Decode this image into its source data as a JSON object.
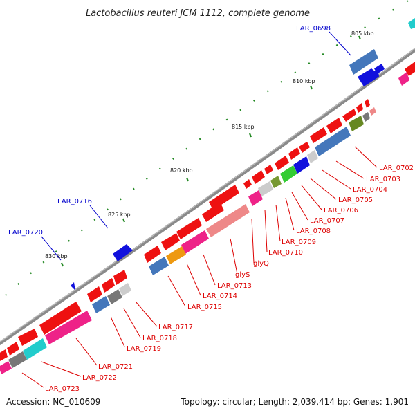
{
  "title": "Lactobacillus reuteri JCM 1112, complete genome",
  "footer": {
    "accession": "Accession: NC_010609",
    "topology": "Topology: circular; Length: 2,039,414 bp; Genes: 1,901"
  },
  "scale_labels": [
    "805 kbp",
    "810 kbp",
    "815 kbp",
    "820 kbp",
    "825 kbp",
    "830 kbp"
  ],
  "gene_labels_blue": [
    "LAR_0698",
    "LAR_0716",
    "LAR_0720"
  ],
  "gene_labels_red": [
    "LAR_0702",
    "LAR_0703",
    "LAR_0704",
    "LAR_0705",
    "LAR_0706",
    "LAR_0707",
    "LAR_0708",
    "LAR_0709",
    "LAR_0710",
    "glyQ",
    "glyS",
    "LAR_0713",
    "LAR_0714",
    "LAR_0715",
    "LAR_0717",
    "LAR_0718",
    "LAR_0719",
    "LAR_0721",
    "LAR_0722",
    "LAR_0723"
  ],
  "colors": {
    "backbone": "#808080",
    "forward_gene": "#ee1111",
    "reverse_gene_blue": "#4477bb",
    "magenta": "#ee2288",
    "salmon": "#ee8888",
    "cyan": "#22cccc",
    "dark_blue": "#1111dd",
    "tick_green": "#228822",
    "label_red": "#dd0000",
    "label_blue": "#0000cc"
  }
}
